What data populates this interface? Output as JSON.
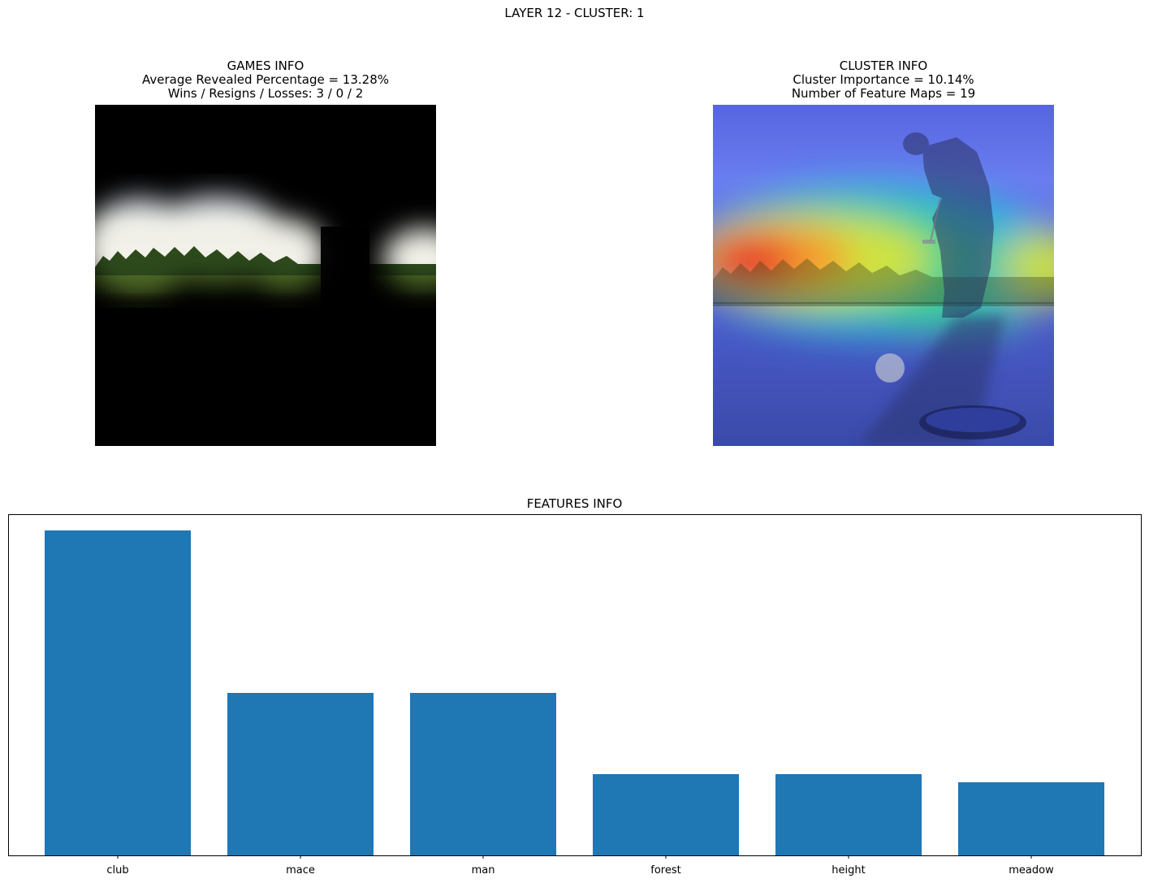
{
  "figure": {
    "suptitle": "LAYER 12 - CLUSTER: 1"
  },
  "games_panel": {
    "title": "GAMES INFO",
    "line1": "Average Revealed Percentage = 13.28%",
    "line2": "Wins / Resigns / Losses: 3 / 0 / 2"
  },
  "cluster_panel": {
    "title": "CLUSTER INFO",
    "line1": "Cluster Importance = 10.14%",
    "line2": "Number of Feature Maps = 19"
  },
  "colors": {
    "bar": "#1f77b4",
    "axis": "#000000",
    "mask": "#000000"
  },
  "chart_data": {
    "type": "bar",
    "title": "FEATURES INFO",
    "categories": [
      "club",
      "mace",
      "man",
      "forest",
      "height",
      "meadow"
    ],
    "values": [
      4,
      2,
      2,
      1,
      1,
      0.9
    ],
    "xlabel": "",
    "ylabel": "",
    "ylim": [
      0,
      4.2
    ],
    "yticks_visible": false,
    "grid": false
  }
}
